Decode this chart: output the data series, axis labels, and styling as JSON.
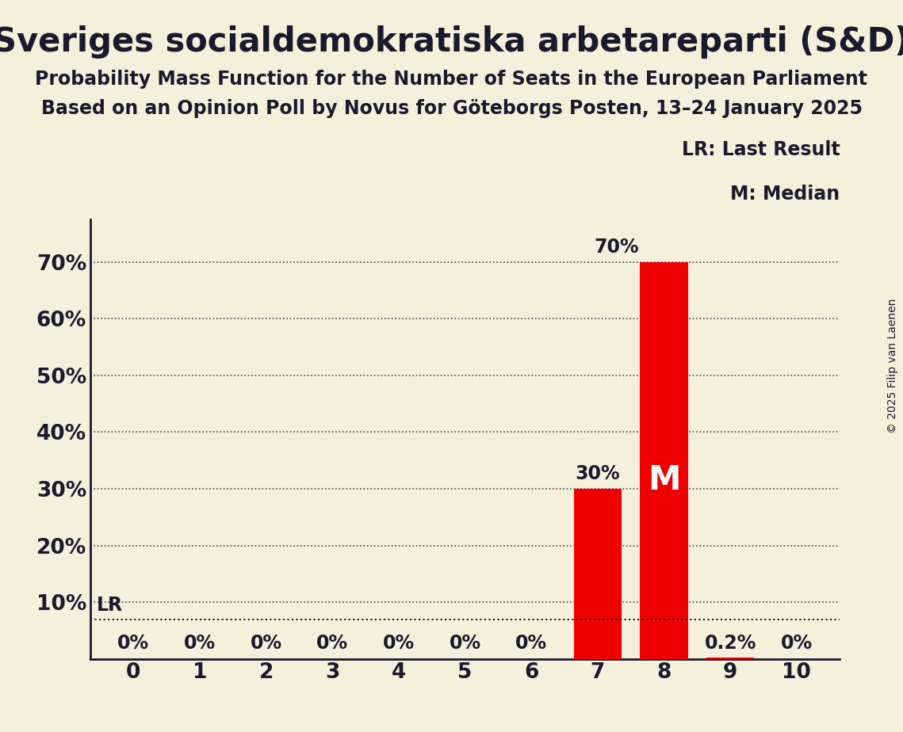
{
  "title": "Sveriges socialdemokratiska arbetareparti (S&D)",
  "subtitle1": "Probability Mass Function for the Number of Seats in the European Parliament",
  "subtitle2": "Based on an Opinion Poll by Novus for Göteborgs Posten, 13–24 January 2025",
  "copyright": "© 2025 Filip van Laenen",
  "background_color": "#f5f0dc",
  "bar_color": "#ee0000",
  "seats": [
    0,
    1,
    2,
    3,
    4,
    5,
    6,
    7,
    8,
    9,
    10
  ],
  "probabilities": [
    0.0,
    0.0,
    0.0,
    0.0,
    0.0,
    0.0,
    0.0,
    0.3,
    0.7,
    0.002,
    0.0
  ],
  "bar_labels": [
    "0%",
    "0%",
    "0%",
    "0%",
    "0%",
    "0%",
    "0%",
    "30%",
    "",
    "0.2%",
    "0%"
  ],
  "median_seat": 8,
  "lr_value": 0.07,
  "ylim": [
    0,
    0.775
  ],
  "yticks": [
    0.1,
    0.2,
    0.3,
    0.4,
    0.5,
    0.6,
    0.7
  ],
  "ytick_labels": [
    "10%",
    "20%",
    "30%",
    "40%",
    "50%",
    "60%",
    "70%"
  ],
  "title_fontsize": 30,
  "subtitle_fontsize": 17,
  "label_fontsize": 17,
  "tick_fontsize": 19,
  "legend_fontsize": 17,
  "axis_color": "#1a1a2e",
  "text_color": "#1a1a2e",
  "white": "#ffffff"
}
